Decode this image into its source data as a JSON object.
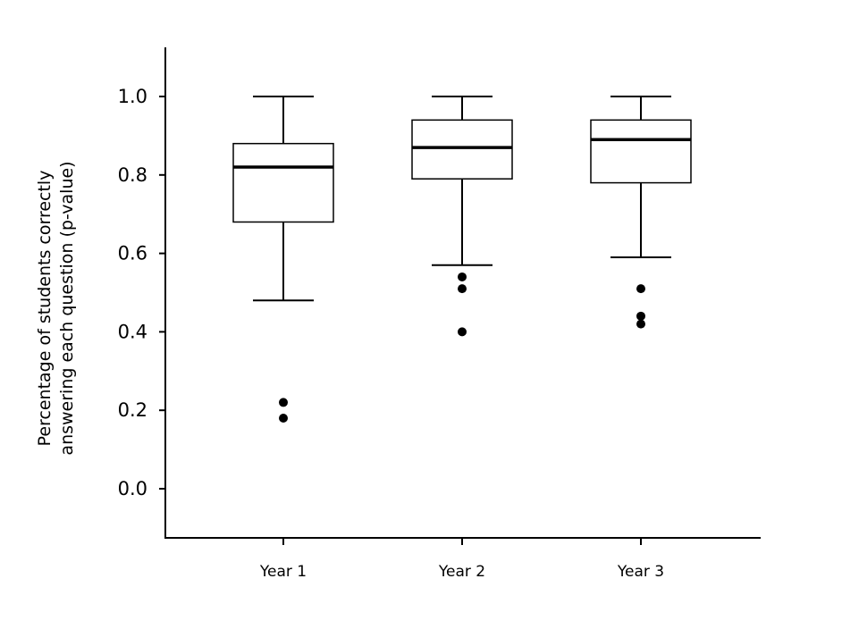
{
  "chart_data": {
    "type": "boxplot",
    "title": "",
    "xlabel": "",
    "ylabel_lines": [
      "Percentage of students correctly",
      "answering each question (p-value)"
    ],
    "categories": [
      "Year 1",
      "Year 2",
      "Year 3"
    ],
    "yticks": [
      "0.0",
      "0.2",
      "0.4",
      "0.6",
      "0.8",
      "1.0"
    ],
    "ytick_values": [
      0.0,
      0.2,
      0.4,
      0.6,
      0.8,
      1.0
    ],
    "ylim": [
      -0.125,
      1.125
    ],
    "grid": false,
    "legend": "none",
    "boxes": [
      {
        "category": "Year 1",
        "whisker_low": 0.48,
        "q1": 0.68,
        "median": 0.82,
        "q3": 0.88,
        "whisker_high": 1.0,
        "outliers": [
          0.22,
          0.18
        ]
      },
      {
        "category": "Year 2",
        "whisker_low": 0.57,
        "q1": 0.79,
        "median": 0.87,
        "q3": 0.94,
        "whisker_high": 1.0,
        "outliers": [
          0.54,
          0.51,
          0.4
        ]
      },
      {
        "category": "Year 3",
        "whisker_low": 0.59,
        "q1": 0.78,
        "median": 0.89,
        "q3": 0.94,
        "whisker_high": 1.0,
        "outliers": [
          0.51,
          0.44,
          0.42
        ]
      }
    ],
    "colors": {
      "box_stroke": "#000000",
      "box_fill": "#ffffff",
      "median": "#000000",
      "outlier": "#000000",
      "axis": "#000000"
    }
  }
}
